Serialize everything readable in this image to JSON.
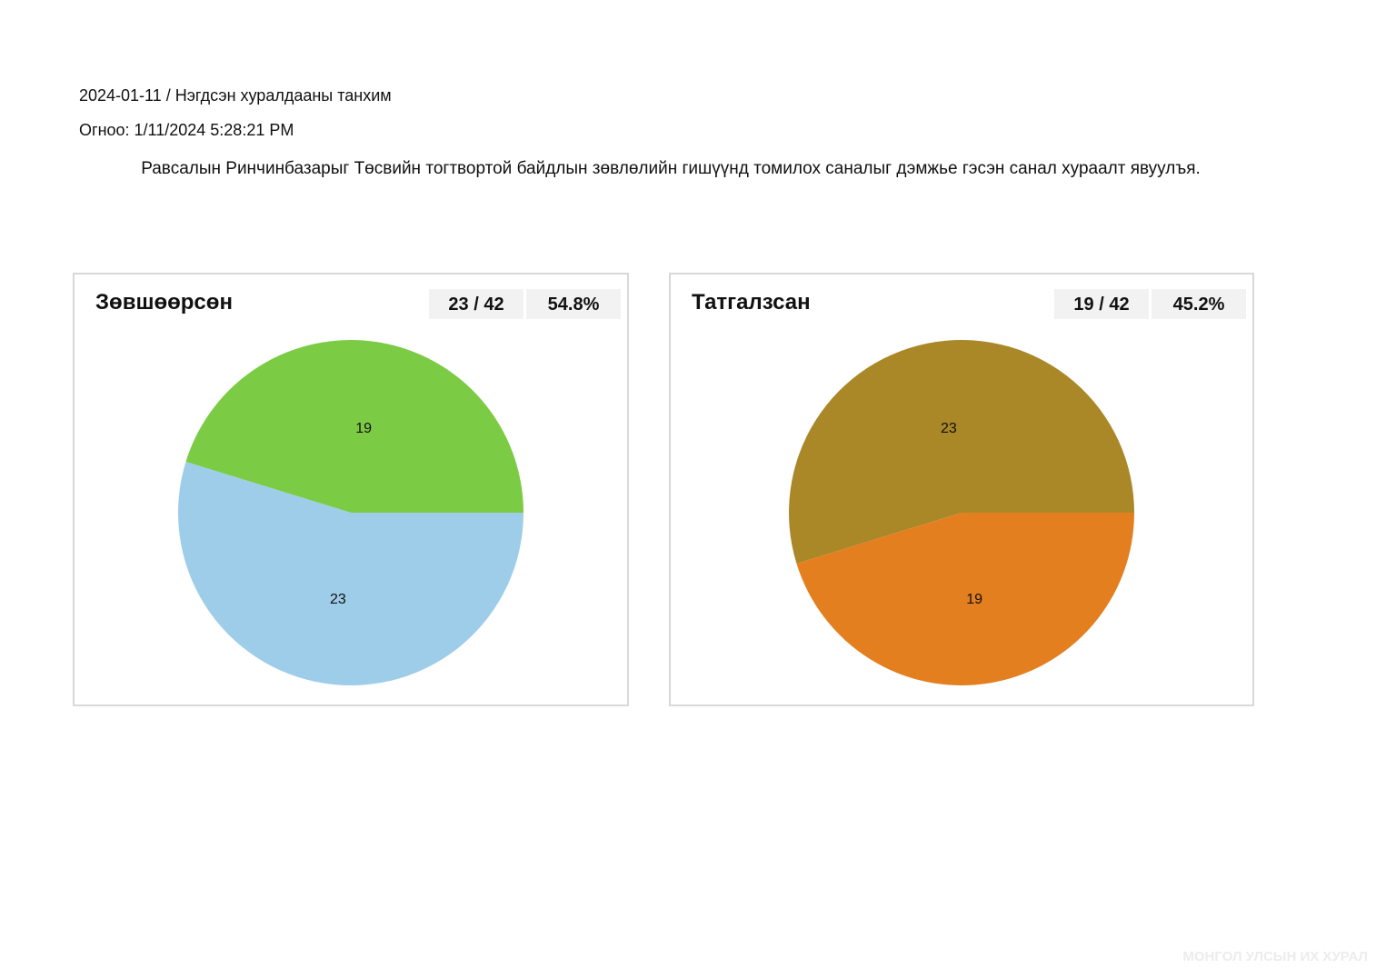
{
  "header": {
    "session": "2024-01-11 / Нэгдсэн хуралдааны танхим",
    "date_label": "Огноо:",
    "date_value": "1/11/2024 5:28:21 PM",
    "motion": "Равсалын Ринчинбазарыг Төсвийн тогтвортой байдлын зөвлөлийн гишүүнд томилох саналыг дэмжье гэсэн санал хураалт явуулъя."
  },
  "watermark": "МОНГОЛ УЛСЫН ИХ ХУРАЛ",
  "chart_data": [
    {
      "type": "pie",
      "title": "Зөвшөөрсөн",
      "count": "23 / 42",
      "percent": "54.8%",
      "slices": [
        {
          "label": "19",
          "value": 19,
          "color": "#7bcb45"
        },
        {
          "label": "23",
          "value": 23,
          "color": "#9ecde9"
        }
      ]
    },
    {
      "type": "pie",
      "title": "Татгалзсан",
      "count": "19 / 42",
      "percent": "45.2%",
      "slices": [
        {
          "label": "23",
          "value": 23,
          "color": "#aa8727"
        },
        {
          "label": "19",
          "value": 19,
          "color": "#e47f20"
        }
      ]
    }
  ]
}
